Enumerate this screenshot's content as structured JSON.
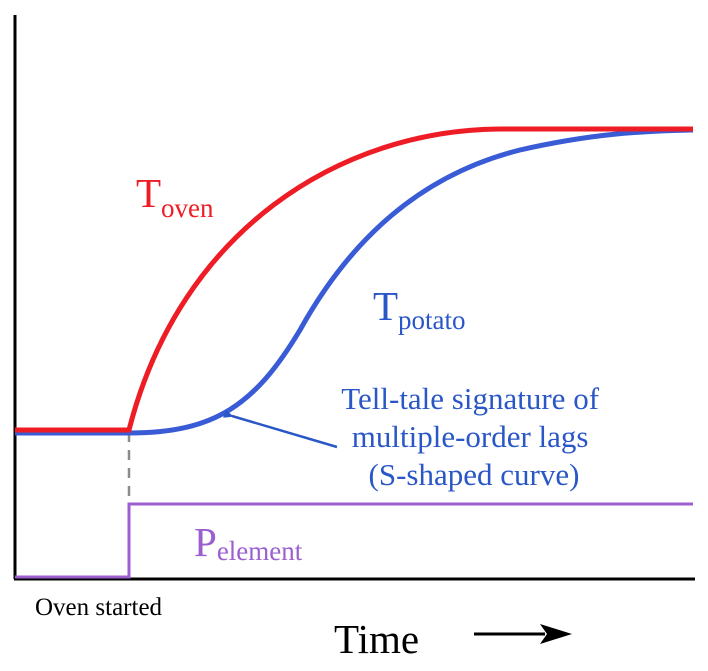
{
  "diagram": {
    "colors": {
      "oven": "#ee1c24",
      "potato": "#3a5bd6",
      "element": "#9b5fd0",
      "annotation": "#2a57c7",
      "axis": "#000000",
      "dashed_marker": "#8c8c8c"
    },
    "labels": {
      "oven_main": "T",
      "oven_sub": "oven",
      "potato_main": "T",
      "potato_sub": "potato",
      "element_main": "P",
      "element_sub": "element",
      "annotation_lines": [
        "Tell-tale signature of",
        "multiple-order lags",
        "(S-shaped curve)"
      ],
      "oven_started": "Oven started",
      "time_axis": "Time"
    }
  }
}
